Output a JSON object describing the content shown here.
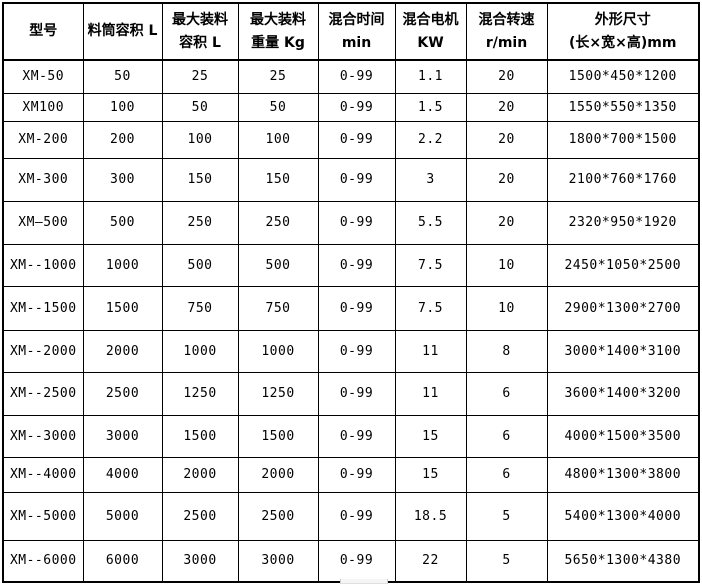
{
  "colors": {
    "border": "#000000",
    "text": "#000000",
    "background": "#ffffff"
  },
  "table": {
    "columns": [
      {
        "line1": "型号",
        "line2": ""
      },
      {
        "line1": "料筒容积 L",
        "line2": ""
      },
      {
        "line1": "最大装料",
        "line2": "容积 L"
      },
      {
        "line1": "最大装料",
        "line2": "重量 Kg"
      },
      {
        "line1": "混合时间",
        "line2": "min"
      },
      {
        "line1": "混合电机",
        "line2": "KW"
      },
      {
        "line1": "混合转速",
        "line2": "r/min"
      },
      {
        "line1": "外形尺寸",
        "line2": "(长×宽×高)mm"
      }
    ],
    "rows": [
      [
        "XM-50",
        "50",
        "25",
        "25",
        "0-99",
        "1.1",
        "20",
        "1500*450*1200"
      ],
      [
        "XM100",
        "100",
        "50",
        "50",
        "0-99",
        "1.5",
        "20",
        "1550*550*1350"
      ],
      [
        "XM-200",
        "200",
        "100",
        "100",
        "0-99",
        "2.2",
        "20",
        "1800*700*1500"
      ],
      [
        "XM-300",
        "300",
        "150",
        "150",
        "0-99",
        "3",
        "20",
        "2100*760*1760"
      ],
      [
        "XM—500",
        "500",
        "250",
        "250",
        "0-99",
        "5.5",
        "20",
        "2320*950*1920"
      ],
      [
        "XM--1000",
        "1000",
        "500",
        "500",
        "0-99",
        "7.5",
        "10",
        "2450*1050*2500"
      ],
      [
        "XM--1500",
        "1500",
        "750",
        "750",
        "0-99",
        "7.5",
        "10",
        "2900*1300*2700"
      ],
      [
        "XM--2000",
        "2000",
        "1000",
        "1000",
        "0-99",
        "11",
        "8",
        "3000*1400*3100"
      ],
      [
        "XM--2500",
        "2500",
        "1250",
        "1250",
        "0-99",
        "11",
        "6",
        "3600*1400*3200"
      ],
      [
        "XM--3000",
        "3000",
        "1500",
        "1500",
        "0-99",
        "15",
        "6",
        "4000*1500*3500"
      ],
      [
        "XM--4000",
        "4000",
        "2000",
        "2000",
        "0-99",
        "15",
        "6",
        "4800*1300*3800"
      ],
      [
        "XM--5000",
        "5000",
        "2500",
        "2500",
        "0-99",
        "18.5",
        "5",
        "5400*1300*4000"
      ],
      [
        "XM--6000",
        "6000",
        "3000",
        "3000",
        "0-99",
        "22",
        "5",
        "5650*1300*4380"
      ]
    ]
  }
}
